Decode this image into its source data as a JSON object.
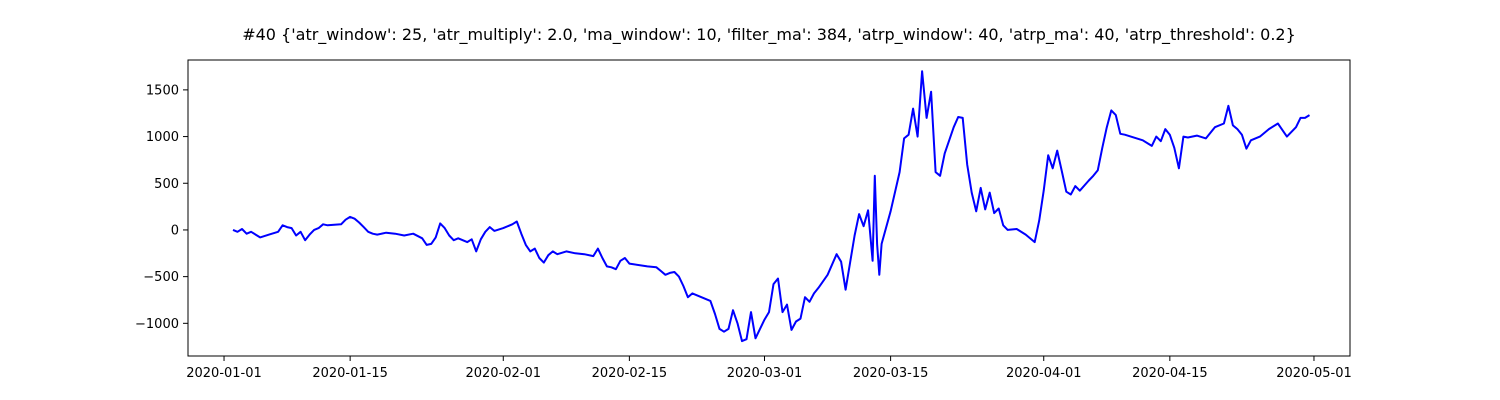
{
  "chart_data": {
    "type": "line",
    "title": "#40 {'atr_window': 25, 'atr_multiply': 2.0, 'ma_window': 10, 'filter_ma': 384, 'atrp_window': 40, 'atrp_ma': 40, 'atrp_threshold': 0.2}",
    "xlabel": "",
    "ylabel": "",
    "x_type": "date",
    "xlim": [
      "2019-12-28",
      "2020-05-05"
    ],
    "ylim": [
      -1350,
      1820
    ],
    "x_ticks": [
      "2020-01-01",
      "2020-01-15",
      "2020-02-01",
      "2020-02-15",
      "2020-03-01",
      "2020-03-15",
      "2020-04-01",
      "2020-04-15",
      "2020-05-01"
    ],
    "y_ticks": [
      -1000,
      -500,
      0,
      500,
      1000,
      1500
    ],
    "grid": false,
    "legend": "none",
    "series": [
      {
        "color": "#0000ff",
        "points": [
          [
            "2020-01-02",
            0
          ],
          [
            "2020-01-02T12:00",
            -20
          ],
          [
            "2020-01-03",
            10
          ],
          [
            "2020-01-03T12:00",
            -40
          ],
          [
            "2020-01-04",
            -20
          ],
          [
            "2020-01-04T12:00",
            -50
          ],
          [
            "2020-01-05",
            -80
          ],
          [
            "2020-01-06",
            -50
          ],
          [
            "2020-01-07",
            -20
          ],
          [
            "2020-01-07T12:00",
            50
          ],
          [
            "2020-01-08",
            30
          ],
          [
            "2020-01-08T12:00",
            20
          ],
          [
            "2020-01-09",
            -60
          ],
          [
            "2020-01-09T12:00",
            -20
          ],
          [
            "2020-01-10",
            -110
          ],
          [
            "2020-01-10T12:00",
            -50
          ],
          [
            "2020-01-11",
            0
          ],
          [
            "2020-01-11T12:00",
            20
          ],
          [
            "2020-01-12",
            60
          ],
          [
            "2020-01-12T12:00",
            50
          ],
          [
            "2020-01-14",
            60
          ],
          [
            "2020-01-14T12:00",
            110
          ],
          [
            "2020-01-15",
            140
          ],
          [
            "2020-01-15T12:00",
            120
          ],
          [
            "2020-01-16",
            80
          ],
          [
            "2020-01-16T12:00",
            30
          ],
          [
            "2020-01-17",
            -20
          ],
          [
            "2020-01-17T12:00",
            -40
          ],
          [
            "2020-01-18",
            -50
          ],
          [
            "2020-01-19",
            -30
          ],
          [
            "2020-01-20",
            -40
          ],
          [
            "2020-01-21",
            -60
          ],
          [
            "2020-01-22",
            -40
          ],
          [
            "2020-01-23",
            -90
          ],
          [
            "2020-01-23T12:00",
            -160
          ],
          [
            "2020-01-24",
            -150
          ],
          [
            "2020-01-24T12:00",
            -80
          ],
          [
            "2020-01-25",
            70
          ],
          [
            "2020-01-25T12:00",
            20
          ],
          [
            "2020-01-26",
            -60
          ],
          [
            "2020-01-26T12:00",
            -110
          ],
          [
            "2020-01-27",
            -90
          ],
          [
            "2020-01-28",
            -130
          ],
          [
            "2020-01-28T12:00",
            -100
          ],
          [
            "2020-01-29",
            -230
          ],
          [
            "2020-01-29T12:00",
            -100
          ],
          [
            "2020-01-30",
            -20
          ],
          [
            "2020-01-30T12:00",
            30
          ],
          [
            "2020-01-31",
            -10
          ],
          [
            "2020-02-01",
            20
          ],
          [
            "2020-02-02",
            60
          ],
          [
            "2020-02-02T12:00",
            90
          ],
          [
            "2020-02-03",
            -40
          ],
          [
            "2020-02-03T12:00",
            -160
          ],
          [
            "2020-02-04",
            -230
          ],
          [
            "2020-02-04T12:00",
            -200
          ],
          [
            "2020-02-05",
            -300
          ],
          [
            "2020-02-05T12:00",
            -350
          ],
          [
            "2020-02-06",
            -270
          ],
          [
            "2020-02-06T12:00",
            -230
          ],
          [
            "2020-02-07",
            -260
          ],
          [
            "2020-02-08",
            -230
          ],
          [
            "2020-02-09",
            -250
          ],
          [
            "2020-02-10",
            -260
          ],
          [
            "2020-02-11",
            -280
          ],
          [
            "2020-02-11T12:00",
            -200
          ],
          [
            "2020-02-12",
            -300
          ],
          [
            "2020-02-12T12:00",
            -390
          ],
          [
            "2020-02-13",
            -400
          ],
          [
            "2020-02-13T12:00",
            -420
          ],
          [
            "2020-02-14",
            -330
          ],
          [
            "2020-02-14T12:00",
            -300
          ],
          [
            "2020-02-15",
            -360
          ],
          [
            "2020-02-17",
            -390
          ],
          [
            "2020-02-18",
            -400
          ],
          [
            "2020-02-18T12:00",
            -440
          ],
          [
            "2020-02-19",
            -480
          ],
          [
            "2020-02-19T12:00",
            -460
          ],
          [
            "2020-02-20",
            -450
          ],
          [
            "2020-02-20T12:00",
            -500
          ],
          [
            "2020-02-21",
            -600
          ],
          [
            "2020-02-21T12:00",
            -720
          ],
          [
            "2020-02-22",
            -680
          ],
          [
            "2020-02-23",
            -720
          ],
          [
            "2020-02-24",
            -760
          ],
          [
            "2020-02-24T12:00",
            -900
          ],
          [
            "2020-02-25",
            -1060
          ],
          [
            "2020-02-25T12:00",
            -1090
          ],
          [
            "2020-02-26",
            -1060
          ],
          [
            "2020-02-26T12:00",
            -860
          ],
          [
            "2020-02-27",
            -1000
          ],
          [
            "2020-02-27T12:00",
            -1190
          ],
          [
            "2020-02-28",
            -1170
          ],
          [
            "2020-02-28T12:00",
            -880
          ],
          [
            "2020-02-29",
            -1160
          ],
          [
            "2020-03-01",
            -960
          ],
          [
            "2020-03-01T12:00",
            -880
          ],
          [
            "2020-03-02",
            -580
          ],
          [
            "2020-03-02T12:00",
            -520
          ],
          [
            "2020-03-03",
            -880
          ],
          [
            "2020-03-03T12:00",
            -800
          ],
          [
            "2020-03-04",
            -1070
          ],
          [
            "2020-03-04T12:00",
            -980
          ],
          [
            "2020-03-05",
            -950
          ],
          [
            "2020-03-05T12:00",
            -720
          ],
          [
            "2020-03-06",
            -770
          ],
          [
            "2020-03-06T12:00",
            -680
          ],
          [
            "2020-03-07",
            -620
          ],
          [
            "2020-03-08",
            -480
          ],
          [
            "2020-03-09",
            -260
          ],
          [
            "2020-03-09T12:00",
            -340
          ],
          [
            "2020-03-10",
            -640
          ],
          [
            "2020-03-10T12:00",
            -350
          ],
          [
            "2020-03-11",
            -60
          ],
          [
            "2020-03-11T12:00",
            170
          ],
          [
            "2020-03-12",
            40
          ],
          [
            "2020-03-12T12:00",
            210
          ],
          [
            "2020-03-13",
            -330
          ],
          [
            "2020-03-13T06:00",
            580
          ],
          [
            "2020-03-13T12:00",
            -150
          ],
          [
            "2020-03-13T18:00",
            -480
          ],
          [
            "2020-03-14",
            -150
          ],
          [
            "2020-03-15",
            200
          ],
          [
            "2020-03-16",
            620
          ],
          [
            "2020-03-16T12:00",
            980
          ],
          [
            "2020-03-17",
            1020
          ],
          [
            "2020-03-17T12:00",
            1300
          ],
          [
            "2020-03-18",
            1000
          ],
          [
            "2020-03-18T12:00",
            1700
          ],
          [
            "2020-03-19",
            1200
          ],
          [
            "2020-03-19T12:00",
            1480
          ],
          [
            "2020-03-20",
            620
          ],
          [
            "2020-03-20T12:00",
            580
          ],
          [
            "2020-03-21",
            820
          ],
          [
            "2020-03-22",
            1100
          ],
          [
            "2020-03-22T12:00",
            1210
          ],
          [
            "2020-03-23",
            1200
          ],
          [
            "2020-03-23T12:00",
            700
          ],
          [
            "2020-03-24",
            400
          ],
          [
            "2020-03-24T12:00",
            200
          ],
          [
            "2020-03-25",
            450
          ],
          [
            "2020-03-25T12:00",
            220
          ],
          [
            "2020-03-26",
            400
          ],
          [
            "2020-03-26T12:00",
            180
          ],
          [
            "2020-03-27",
            230
          ],
          [
            "2020-03-27T12:00",
            50
          ],
          [
            "2020-03-28",
            0
          ],
          [
            "2020-03-29",
            10
          ],
          [
            "2020-03-30",
            -50
          ],
          [
            "2020-03-31",
            -130
          ],
          [
            "2020-03-31T12:00",
            100
          ],
          [
            "2020-04-01",
            420
          ],
          [
            "2020-04-01T12:00",
            800
          ],
          [
            "2020-04-02",
            660
          ],
          [
            "2020-04-02T12:00",
            850
          ],
          [
            "2020-04-03",
            630
          ],
          [
            "2020-04-03T12:00",
            410
          ],
          [
            "2020-04-04",
            380
          ],
          [
            "2020-04-04T12:00",
            470
          ],
          [
            "2020-04-05",
            420
          ],
          [
            "2020-04-06",
            530
          ],
          [
            "2020-04-06T12:00",
            580
          ],
          [
            "2020-04-07",
            640
          ],
          [
            "2020-04-07T12:00",
            880
          ],
          [
            "2020-04-08",
            1100
          ],
          [
            "2020-04-08T12:00",
            1280
          ],
          [
            "2020-04-09",
            1230
          ],
          [
            "2020-04-09T12:00",
            1030
          ],
          [
            "2020-04-10",
            1020
          ],
          [
            "2020-04-12",
            960
          ],
          [
            "2020-04-13",
            900
          ],
          [
            "2020-04-13T12:00",
            1000
          ],
          [
            "2020-04-14",
            950
          ],
          [
            "2020-04-14T12:00",
            1080
          ],
          [
            "2020-04-15",
            1020
          ],
          [
            "2020-04-15T12:00",
            880
          ],
          [
            "2020-04-16",
            660
          ],
          [
            "2020-04-16T12:00",
            1000
          ],
          [
            "2020-04-17",
            990
          ],
          [
            "2020-04-18",
            1010
          ],
          [
            "2020-04-19",
            980
          ],
          [
            "2020-04-20",
            1100
          ],
          [
            "2020-04-21",
            1140
          ],
          [
            "2020-04-21T12:00",
            1330
          ],
          [
            "2020-04-22",
            1120
          ],
          [
            "2020-04-22T12:00",
            1080
          ],
          [
            "2020-04-23",
            1020
          ],
          [
            "2020-04-23T12:00",
            870
          ],
          [
            "2020-04-24",
            960
          ],
          [
            "2020-04-25",
            1000
          ],
          [
            "2020-04-26",
            1080
          ],
          [
            "2020-04-27",
            1140
          ],
          [
            "2020-04-28",
            1000
          ],
          [
            "2020-04-28T12:00",
            1050
          ],
          [
            "2020-04-29",
            1100
          ],
          [
            "2020-04-29T12:00",
            1200
          ],
          [
            "2020-04-30",
            1200
          ],
          [
            "2020-04-30T12:00",
            1230
          ]
        ]
      }
    ]
  }
}
